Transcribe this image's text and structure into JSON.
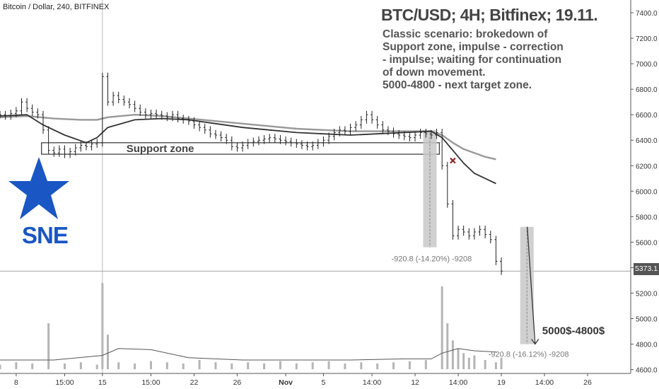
{
  "header": {
    "symbol": "Bitcoin / Dollar, 240, BITFINEX",
    "title": "BTC/USD; 4H; Bitfinex; 19.11.",
    "description": [
      "Classic scenario: brokedown of",
      "Support zone, impulse - correction",
      "- impulse; waiting for continuation",
      "of down movement.",
      "5000-4800 - next target zone."
    ]
  },
  "logo": {
    "text": "SNE",
    "icon": "star-icon",
    "color": "#1a56c4"
  },
  "last_price": "5373.1",
  "chart_data": {
    "type": "line",
    "y_axis": {
      "ticks": [
        4600,
        4800,
        5000,
        5200,
        5400,
        5600,
        5800,
        6000,
        6200,
        6400,
        6600,
        6800,
        7000,
        7200,
        7400
      ],
      "labels": [
        "4600.0",
        "4800.0",
        "5000.0",
        "5200.0",
        "5400.0",
        "5600.0",
        "5800.0",
        "6000.0",
        "6200.0",
        "6400.0",
        "6600.0",
        "6800.0",
        "7000.0",
        "7200.0",
        "7400.0"
      ],
      "ylim": [
        4570,
        7500
      ]
    },
    "x_axis": {
      "labels": [
        "8",
        "15:00",
        "15",
        "15:00",
        "22",
        "26",
        "Nov",
        "5",
        "14:00",
        "12",
        "14:00",
        "19",
        "14:00",
        "26"
      ],
      "positions": [
        3,
        12,
        19,
        28,
        36,
        44,
        53,
        60,
        69,
        77,
        85,
        93,
        101,
        109
      ],
      "xlim": [
        0,
        117
      ]
    },
    "price": {
      "x": [
        0,
        1,
        2,
        3,
        4,
        5,
        6,
        7,
        8,
        9,
        10,
        11,
        12,
        13,
        14,
        15,
        16,
        17,
        18,
        19,
        20,
        21,
        22,
        23,
        24,
        25,
        26,
        27,
        28,
        29,
        30,
        31,
        32,
        33,
        34,
        35,
        36,
        37,
        38,
        39,
        40,
        41,
        42,
        43,
        44,
        45,
        46,
        47,
        48,
        49,
        50,
        51,
        52,
        53,
        54,
        55,
        56,
        57,
        58,
        59,
        60,
        61,
        62,
        63,
        64,
        65,
        66,
        67,
        68,
        69,
        70,
        71,
        72,
        73,
        74,
        75,
        76,
        77,
        78,
        79,
        80,
        81,
        82,
        83,
        84,
        85,
        86,
        87,
        88,
        89,
        90,
        91,
        92,
        93
      ],
      "values": [
        6600,
        6590,
        6610,
        6630,
        6700,
        6650,
        6620,
        6600,
        6480,
        6320,
        6300,
        6330,
        6290,
        6310,
        6340,
        6360,
        6350,
        6370,
        6380,
        6900,
        6700,
        6750,
        6720,
        6700,
        6680,
        6650,
        6620,
        6600,
        6610,
        6600,
        6590,
        6580,
        6600,
        6570,
        6560,
        6550,
        6520,
        6500,
        6480,
        6450,
        6440,
        6420,
        6400,
        6350,
        6340,
        6360,
        6380,
        6390,
        6400,
        6410,
        6420,
        6410,
        6400,
        6390,
        6380,
        6370,
        6360,
        6350,
        6360,
        6380,
        6400,
        6430,
        6460,
        6480,
        6470,
        6500,
        6520,
        6560,
        6600,
        6560,
        6520,
        6480,
        6470,
        6450,
        6440,
        6430,
        6420,
        6440,
        6460,
        6450,
        6440,
        6460,
        6200,
        5900,
        5650,
        5700,
        5680,
        5650,
        5680,
        5700,
        5660,
        5620,
        5450,
        5373
      ]
    },
    "ma_slow": {
      "x": [
        0,
        5,
        10,
        15,
        18,
        20,
        25,
        30,
        35,
        40,
        45,
        50,
        55,
        60,
        65,
        70,
        75,
        80,
        82,
        84,
        86,
        88,
        90,
        92
      ],
      "values": [
        6580,
        6590,
        6570,
        6560,
        6560,
        6580,
        6600,
        6590,
        6570,
        6550,
        6530,
        6510,
        6490,
        6480,
        6470,
        6470,
        6470,
        6470,
        6440,
        6380,
        6330,
        6300,
        6270,
        6250
      ]
    },
    "ma_fast": {
      "x": [
        0,
        5,
        8,
        12,
        16,
        18,
        20,
        25,
        30,
        35,
        40,
        45,
        50,
        55,
        60,
        65,
        70,
        75,
        80,
        82,
        84,
        86,
        88,
        90,
        92
      ],
      "values": [
        6590,
        6600,
        6520,
        6440,
        6380,
        6420,
        6500,
        6560,
        6570,
        6560,
        6530,
        6500,
        6480,
        6460,
        6450,
        6440,
        6450,
        6460,
        6470,
        6420,
        6320,
        6220,
        6140,
        6100,
        6060
      ]
    },
    "volume": {
      "x": [
        0,
        3,
        6,
        9,
        12,
        15,
        18,
        19,
        20,
        22,
        25,
        28,
        31,
        34,
        37,
        40,
        43,
        46,
        49,
        52,
        55,
        58,
        61,
        64,
        67,
        70,
        73,
        76,
        79,
        82,
        83,
        84,
        85,
        86,
        87,
        88,
        90,
        92,
        93
      ],
      "values": [
        4,
        6,
        5,
        40,
        5,
        6,
        4,
        75,
        30,
        6,
        5,
        7,
        6,
        5,
        8,
        6,
        5,
        6,
        5,
        7,
        5,
        6,
        7,
        5,
        6,
        5,
        6,
        7,
        8,
        72,
        40,
        25,
        18,
        14,
        10,
        12,
        8,
        6,
        10
      ],
      "max": 80
    },
    "volume_ma": {
      "x": [
        0,
        10,
        19,
        22,
        28,
        35,
        45,
        55,
        65,
        75,
        80,
        82,
        85,
        88,
        92
      ],
      "values": [
        8,
        8,
        12,
        18,
        17,
        10,
        8,
        8,
        8,
        9,
        9,
        14,
        18,
        16,
        15
      ]
    },
    "support_zone": {
      "label": "Support zone",
      "x_start": 7.7,
      "x_end": 81.5,
      "y_low": 6290,
      "y_high": 6380
    },
    "measure_1": {
      "label": "-920.8 (-14.20%) -9208",
      "x_start": 78.5,
      "x_end": 81,
      "y_top": 6480,
      "y_bottom": 5560
    },
    "measure_2": {
      "label": "-920.8 (-16.12%) -9208",
      "x_start": 96.5,
      "x_end": 99,
      "y_top": 5720,
      "y_bottom": 4800
    },
    "target": {
      "label": "5000$-4800$",
      "y_high": 5000,
      "y_low": 4800
    },
    "breakdown_marker": {
      "x": 84,
      "y": 6240,
      "icon": "cross-icon"
    },
    "colors": {
      "price": "#222222",
      "ma_slow": "#999999",
      "ma_fast": "#333333",
      "volume": "#b5b5b5",
      "measure": "#c8c8c8",
      "marker": "#8b2a2a"
    }
  }
}
